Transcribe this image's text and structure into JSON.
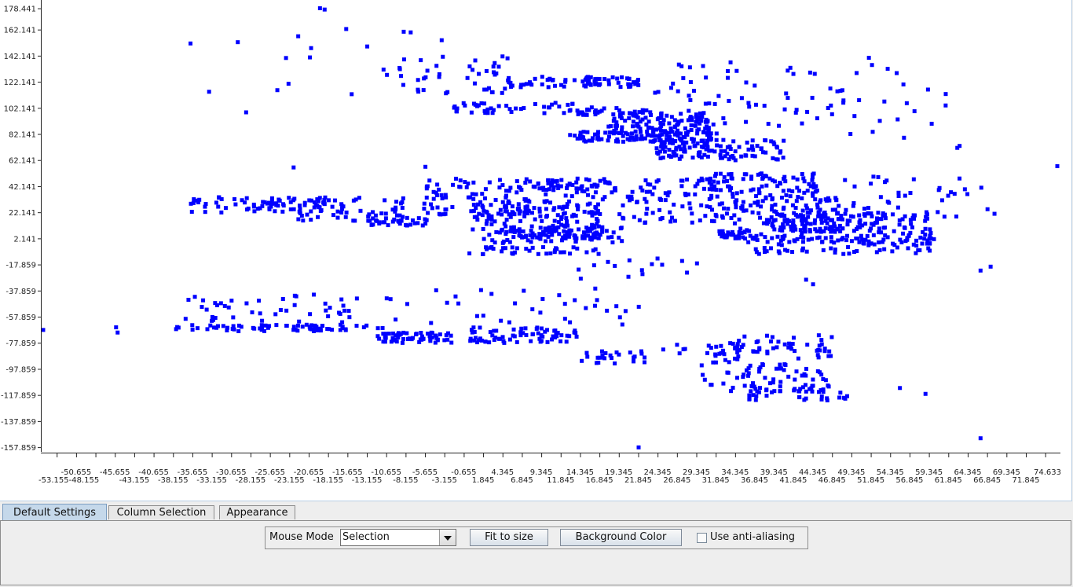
{
  "chart_data": {
    "type": "scatter",
    "title": "",
    "xlabel": "",
    "ylabel": "",
    "xlim": [
      -55.0,
      76.0
    ],
    "ylim": [
      -159.0,
      180.0
    ],
    "grid": false,
    "marker_color": "#0000ff",
    "y_ticks": [
      "178.441",
      "162.141",
      "142.141",
      "122.141",
      "102.141",
      "82.141",
      "62.141",
      "42.141",
      "22.141",
      "2.141",
      "-17.859",
      "-37.859",
      "-57.859",
      "-77.859",
      "-97.859",
      "-117.859",
      "-137.859",
      "-157.859"
    ],
    "x_ticks_top": [
      "-50.655",
      "-45.655",
      "-40.655",
      "-35.655",
      "-30.655",
      "-25.655",
      "-20.655",
      "-15.655",
      "-10.655",
      "-5.655",
      "-0.655",
      "4.345",
      "9.345",
      "14.345",
      "19.345",
      "24.345",
      "29.345",
      "34.345",
      "39.345",
      "44.345",
      "49.345",
      "54.345",
      "59.345",
      "64.345",
      "69.345",
      "74.633"
    ],
    "x_ticks_bottom": [
      "-53.155-48.155",
      "-43.155",
      "-38.155",
      "-33.155",
      "-28.155",
      "-23.155",
      "-18.155",
      "-13.155",
      "-8.155",
      "-3.155",
      "1.845",
      "6.845",
      "11.845",
      "16.845",
      "21.845",
      "26.845",
      "31.845",
      "36.845",
      "41.845",
      "46.845",
      "51.845",
      "56.845",
      "61.845",
      "66.845",
      "71.845"
    ],
    "clusters": [
      {
        "x": [
          -38.0,
          -11.0
        ],
        "y": [
          -69.0,
          -64.0
        ],
        "n": 70
      },
      {
        "x": [
          -12.0,
          -2.0
        ],
        "y": [
          -78.0,
          -70.0
        ],
        "n": 60
      },
      {
        "x": [
          0.0,
          14.0
        ],
        "y": [
          -78.0,
          -66.0
        ],
        "n": 70
      },
      {
        "x": [
          14.0,
          23.0
        ],
        "y": [
          -94.0,
          -84.0
        ],
        "n": 25
      },
      {
        "x": [
          25.0,
          38.0
        ],
        "y": [
          -86.0,
          -78.0
        ],
        "n": 20
      },
      {
        "x": [
          30.0,
          47.0
        ],
        "y": [
          -116.0,
          -72.0
        ],
        "n": 120
      },
      {
        "x": [
          36.0,
          50.0
        ],
        "y": [
          -122.0,
          -110.0
        ],
        "n": 40
      },
      {
        "x": [
          -37.0,
          -15.0
        ],
        "y": [
          -62.0,
          -40.0
        ],
        "n": 40
      },
      {
        "x": [
          -36.0,
          -18.0
        ],
        "y": [
          22.0,
          34.0
        ],
        "n": 70
      },
      {
        "x": [
          -23.0,
          -8.0
        ],
        "y": [
          14.0,
          34.0
        ],
        "n": 60
      },
      {
        "x": [
          -13.0,
          -5.0
        ],
        "y": [
          12.0,
          18.0
        ],
        "n": 30
      },
      {
        "x": [
          -6.0,
          10.0
        ],
        "y": [
          20.0,
          48.0
        ],
        "n": 110
      },
      {
        "x": [
          0.0,
          17.0
        ],
        "y": [
          -10.0,
          28.0
        ],
        "n": 150
      },
      {
        "x": [
          9.0,
          22.0
        ],
        "y": [
          -2.0,
          40.0
        ],
        "n": 70
      },
      {
        "x": [
          10.0,
          19.0
        ],
        "y": [
          38.0,
          48.0
        ],
        "n": 50
      },
      {
        "x": [
          4.0,
          20.0
        ],
        "y": [
          2.0,
          12.0
        ],
        "n": 70
      },
      {
        "x": [
          22.0,
          34.0
        ],
        "y": [
          14.0,
          48.0
        ],
        "n": 80
      },
      {
        "x": [
          30.0,
          45.0
        ],
        "y": [
          32.0,
          52.0
        ],
        "n": 90
      },
      {
        "x": [
          34.0,
          48.0
        ],
        "y": [
          6.0,
          34.0
        ],
        "n": 120
      },
      {
        "x": [
          40.0,
          60.0
        ],
        "y": [
          -2.0,
          22.0
        ],
        "n": 150
      },
      {
        "x": [
          36.0,
          60.0
        ],
        "y": [
          -10.0,
          4.0
        ],
        "n": 80
      },
      {
        "x": [
          32.0,
          38.0
        ],
        "y": [
          2.0,
          8.0
        ],
        "n": 30
      },
      {
        "x": [
          13.0,
          32.0
        ],
        "y": [
          76.0,
          84.0
        ],
        "n": 110
      },
      {
        "x": [
          18.0,
          31.0
        ],
        "y": [
          84.0,
          98.0
        ],
        "n": 100
      },
      {
        "x": [
          24.0,
          41.0
        ],
        "y": [
          62.0,
          78.0
        ],
        "n": 120
      },
      {
        "x": [
          5.0,
          22.0
        ],
        "y": [
          118.0,
          126.0
        ],
        "n": 70
      },
      {
        "x": [
          -2.0,
          16.0
        ],
        "y": [
          98.0,
          106.0
        ],
        "n": 50
      },
      {
        "x": [
          14.0,
          24.0
        ],
        "y": [
          96.0,
          102.0
        ],
        "n": 30
      },
      {
        "x": [
          -9.0,
          5.0
        ],
        "y": [
          112.0,
          142.0
        ],
        "n": 40
      },
      {
        "x": [
          24.0,
          48.0
        ],
        "y": [
          88.0,
          140.0
        ],
        "n": 60
      },
      {
        "x": [
          47.0,
          62.0
        ],
        "y": [
          78.0,
          140.0
        ],
        "n": 20
      },
      {
        "x": [
          48.0,
          65.0
        ],
        "y": [
          16.0,
          50.0
        ],
        "n": 40
      },
      {
        "x": [
          -30.0,
          -8.0
        ],
        "y": [
          56.0,
          168.0
        ],
        "n": 12
      },
      {
        "x": [
          14.0,
          30.0
        ],
        "y": [
          -30.0,
          -12.0
        ],
        "n": 15
      },
      {
        "x": [
          -20.0,
          22.0
        ],
        "y": [
          -64.0,
          -36.0
        ],
        "n": 40
      }
    ],
    "outliers": [
      {
        "x": -54.9,
        "y": -68.0
      },
      {
        "x": -45.3,
        "y": -70.0
      },
      {
        "x": -45.5,
        "y": -66.0
      },
      {
        "x": -35.9,
        "y": 151.5
      },
      {
        "x": -33.5,
        "y": 114.5
      },
      {
        "x": -29.8,
        "y": 152.5
      },
      {
        "x": -19.2,
        "y": 178.5
      },
      {
        "x": -18.6,
        "y": 177.5
      },
      {
        "x": -11.0,
        "y": 131.5
      },
      {
        "x": -8.4,
        "y": 160.5
      },
      {
        "x": -7.5,
        "y": 160.0
      },
      {
        "x": -3.5,
        "y": 154.0
      },
      {
        "x": -22.6,
        "y": 56.5
      },
      {
        "x": -5.6,
        "y": 57.0
      },
      {
        "x": 21.9,
        "y": -158.0
      },
      {
        "x": 43.5,
        "y": -29.5
      },
      {
        "x": 44.4,
        "y": -33.0
      },
      {
        "x": 66.0,
        "y": -22.5
      },
      {
        "x": 67.3,
        "y": -19.5
      },
      {
        "x": 75.9,
        "y": 57.5
      },
      {
        "x": 66.0,
        "y": -151.0
      },
      {
        "x": 67.8,
        "y": 21.0
      },
      {
        "x": 66.9,
        "y": 24.5
      },
      {
        "x": 66.1,
        "y": 41.0
      },
      {
        "x": 55.6,
        "y": -112.5
      },
      {
        "x": 58.9,
        "y": -117.0
      },
      {
        "x": 63.3,
        "y": 73.0
      },
      {
        "x": 63.0,
        "y": 71.5
      },
      {
        "x": 51.6,
        "y": 140.5
      },
      {
        "x": 52.0,
        "y": 135.0
      },
      {
        "x": 61.5,
        "y": 104.0
      },
      {
        "x": 59.7,
        "y": 90.0
      }
    ]
  },
  "tabs": [
    "Default Settings",
    "Column Selection",
    "Appearance"
  ],
  "toolbar": {
    "mouse_mode_label": "Mouse Mode",
    "mouse_mode_value": "Selection",
    "fit_button": "Fit to size",
    "background_button": "Background Color",
    "antialias_label": "Use anti-aliasing",
    "antialias_checked": false
  }
}
